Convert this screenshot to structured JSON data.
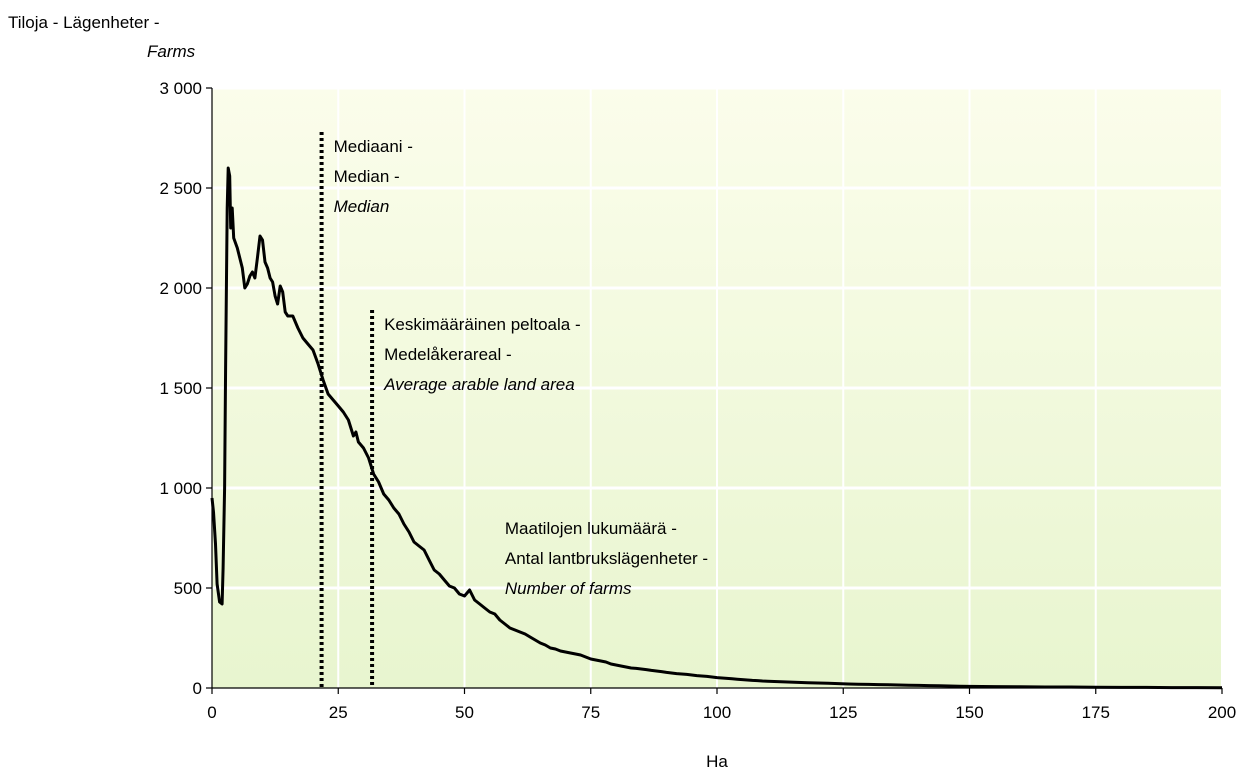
{
  "chart_data": {
    "type": "line",
    "title": "",
    "ylabel": {
      "line1": "Tiloja - Lägenheter -",
      "line2": "Farms"
    },
    "xlabel": "Ha",
    "xlim": [
      0,
      200
    ],
    "ylim": [
      0,
      3000
    ],
    "x_ticks": [
      0,
      25,
      50,
      75,
      100,
      125,
      150,
      175,
      200
    ],
    "y_ticks": [
      0,
      500,
      1000,
      1500,
      2000,
      2500,
      3000
    ],
    "y_tick_labels": [
      "0",
      "500",
      "1 000",
      "1 500",
      "2 000",
      "2 500",
      "3 000"
    ],
    "grid": "horizontal",
    "plot_background": "gradient light yellow-green",
    "series": [
      {
        "name": "Maatilojen lukumäärä - Antal lantbrukslägenheter - Number of farms",
        "color": "#000000",
        "points": [
          [
            0,
            950
          ],
          [
            0.3,
            880
          ],
          [
            0.7,
            720
          ],
          [
            1.0,
            520
          ],
          [
            1.5,
            430
          ],
          [
            2.0,
            420
          ],
          [
            2.2,
            600
          ],
          [
            2.5,
            1000
          ],
          [
            2.7,
            1600
          ],
          [
            3.0,
            2400
          ],
          [
            3.2,
            2600
          ],
          [
            3.5,
            2560
          ],
          [
            3.7,
            2300
          ],
          [
            4.0,
            2400
          ],
          [
            4.3,
            2250
          ],
          [
            5,
            2200
          ],
          [
            5.5,
            2150
          ],
          [
            6,
            2100
          ],
          [
            6.5,
            2000
          ],
          [
            7,
            2020
          ],
          [
            7.5,
            2060
          ],
          [
            8,
            2080
          ],
          [
            8.5,
            2050
          ],
          [
            9,
            2150
          ],
          [
            9.5,
            2260
          ],
          [
            10,
            2240
          ],
          [
            10.5,
            2130
          ],
          [
            11,
            2100
          ],
          [
            11.5,
            2050
          ],
          [
            12,
            2030
          ],
          [
            12.5,
            1960
          ],
          [
            13,
            1920
          ],
          [
            13.5,
            2010
          ],
          [
            14,
            1980
          ],
          [
            14.5,
            1880
          ],
          [
            15,
            1860
          ],
          [
            16,
            1860
          ],
          [
            17,
            1800
          ],
          [
            18,
            1750
          ],
          [
            19,
            1720
          ],
          [
            20,
            1690
          ],
          [
            21,
            1620
          ],
          [
            22,
            1540
          ],
          [
            23,
            1470
          ],
          [
            24,
            1440
          ],
          [
            25,
            1410
          ],
          [
            26,
            1380
          ],
          [
            27,
            1340
          ],
          [
            28,
            1260
          ],
          [
            28.5,
            1280
          ],
          [
            29,
            1230
          ],
          [
            30,
            1200
          ],
          [
            31,
            1150
          ],
          [
            32,
            1070
          ],
          [
            33,
            1030
          ],
          [
            34,
            970
          ],
          [
            35,
            940
          ],
          [
            36,
            900
          ],
          [
            37,
            870
          ],
          [
            38,
            820
          ],
          [
            39,
            780
          ],
          [
            40,
            730
          ],
          [
            41,
            710
          ],
          [
            42,
            690
          ],
          [
            43,
            640
          ],
          [
            44,
            590
          ],
          [
            45,
            570
          ],
          [
            46,
            540
          ],
          [
            47,
            510
          ],
          [
            48,
            500
          ],
          [
            49,
            470
          ],
          [
            50,
            460
          ],
          [
            51,
            490
          ],
          [
            52,
            440
          ],
          [
            53,
            420
          ],
          [
            54,
            400
          ],
          [
            55,
            380
          ],
          [
            56,
            370
          ],
          [
            57,
            340
          ],
          [
            58,
            320
          ],
          [
            59,
            300
          ],
          [
            60,
            290
          ],
          [
            61,
            280
          ],
          [
            62,
            270
          ],
          [
            63,
            255
          ],
          [
            64,
            240
          ],
          [
            65,
            225
          ],
          [
            66,
            215
          ],
          [
            67,
            200
          ],
          [
            68,
            195
          ],
          [
            69,
            185
          ],
          [
            70,
            180
          ],
          [
            71,
            175
          ],
          [
            72,
            170
          ],
          [
            73,
            165
          ],
          [
            74,
            155
          ],
          [
            75,
            145
          ],
          [
            76,
            140
          ],
          [
            77,
            135
          ],
          [
            78,
            130
          ],
          [
            79,
            120
          ],
          [
            80,
            115
          ],
          [
            81,
            110
          ],
          [
            82,
            105
          ],
          [
            83,
            100
          ],
          [
            84,
            98
          ],
          [
            85,
            95
          ],
          [
            86,
            92
          ],
          [
            87,
            88
          ],
          [
            88,
            85
          ],
          [
            89,
            82
          ],
          [
            90,
            78
          ],
          [
            91,
            75
          ],
          [
            92,
            72
          ],
          [
            93,
            70
          ],
          [
            94,
            68
          ],
          [
            95,
            65
          ],
          [
            96,
            62
          ],
          [
            97,
            60
          ],
          [
            98,
            58
          ],
          [
            99,
            55
          ],
          [
            100,
            52
          ],
          [
            101,
            50
          ],
          [
            102,
            48
          ],
          [
            103,
            46
          ],
          [
            104,
            44
          ],
          [
            105,
            42
          ],
          [
            106,
            40
          ],
          [
            107,
            38
          ],
          [
            108,
            37
          ],
          [
            109,
            35
          ],
          [
            110,
            34
          ],
          [
            112,
            32
          ],
          [
            114,
            30
          ],
          [
            116,
            28
          ],
          [
            118,
            26
          ],
          [
            120,
            25
          ],
          [
            122,
            24
          ],
          [
            124,
            22
          ],
          [
            126,
            20
          ],
          [
            128,
            19
          ],
          [
            130,
            18
          ],
          [
            132,
            17
          ],
          [
            134,
            16
          ],
          [
            136,
            15
          ],
          [
            138,
            14
          ],
          [
            140,
            13
          ],
          [
            142,
            12
          ],
          [
            144,
            11
          ],
          [
            146,
            10
          ],
          [
            148,
            9
          ],
          [
            150,
            8
          ],
          [
            155,
            7
          ],
          [
            160,
            6
          ],
          [
            165,
            5
          ],
          [
            170,
            5
          ],
          [
            175,
            4
          ],
          [
            180,
            3
          ],
          [
            185,
            3
          ],
          [
            190,
            2
          ],
          [
            195,
            2
          ],
          [
            200,
            1
          ]
        ]
      }
    ],
    "annotations": [
      {
        "x": 21.7,
        "y_top": 2780,
        "text_lines": [
          "Mediaani -",
          "Median -",
          "Median"
        ],
        "italic_last": true
      },
      {
        "x": 31.7,
        "y_top": 1890,
        "text_lines": [
          "Keskimääräinen peltoala -",
          "Medelåkerareal -",
          "Average arable land area"
        ],
        "italic_last": true
      },
      {
        "text_lines": [
          "Maatilojen lukumäärä -",
          "Antal lantbrukslägenheter -",
          "Number of farms"
        ],
        "italic_last": true,
        "anchor_x": 58,
        "anchor_y": 770
      }
    ]
  }
}
